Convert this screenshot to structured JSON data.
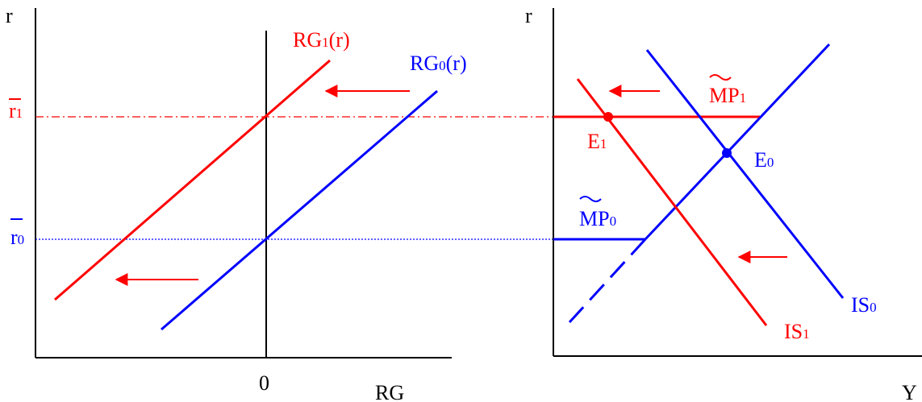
{
  "left_panel": {
    "y_axis_label": "r",
    "x_axis_label": "RG",
    "origin_label": "0",
    "r1_bar": "r",
    "r1_sub": "1",
    "r0_bar": "r",
    "r0_sub": "0",
    "rg1_main": "RG",
    "rg1_sub": "1",
    "rg1_tail": "(r)",
    "rg0_main": "RG",
    "rg0_sub": "0",
    "rg0_tail": "(r)"
  },
  "right_panel": {
    "y_axis_label": "r",
    "x_axis_label": "Y",
    "mp1_main": "MP",
    "mp1_sub": "1",
    "mp0_main": "MP",
    "mp0_sub": "0",
    "e1_main": "E",
    "e1_sub": "1",
    "e0_main": "E",
    "e0_sub": "0",
    "is1_main": "IS",
    "is1_sub": "1",
    "is0_main": "IS",
    "is0_sub": "0"
  },
  "colors": {
    "red": "#ff0000",
    "blue": "#0000ff",
    "black": "#000000"
  }
}
